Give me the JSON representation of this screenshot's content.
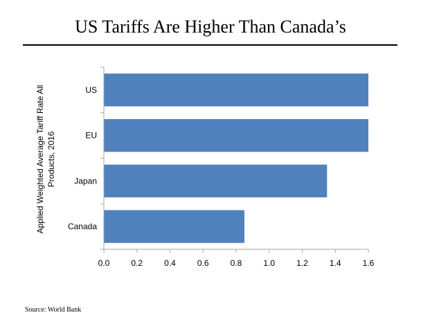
{
  "title": "US Tariffs Are Higher Than Canada’s",
  "source": "Source: World Bank",
  "colors": {
    "bar": "#4f81bd",
    "axis": "#a6a6a6"
  },
  "chart_data": {
    "type": "bar",
    "orientation": "horizontal",
    "categories": [
      "US",
      "EU",
      "Japan",
      "Canada"
    ],
    "values": [
      1.6,
      1.6,
      1.35,
      0.85
    ],
    "xlim": [
      0,
      1.6
    ],
    "xticks": [
      "0.0",
      "0.2",
      "0.4",
      "0.6",
      "0.8",
      "1.0",
      "1.2",
      "1.4",
      "1.6"
    ],
    "ylabel_line1": "Applied Weighted Average Tariff Rate All",
    "ylabel_line2": "Products, 2016",
    "grid": false
  }
}
